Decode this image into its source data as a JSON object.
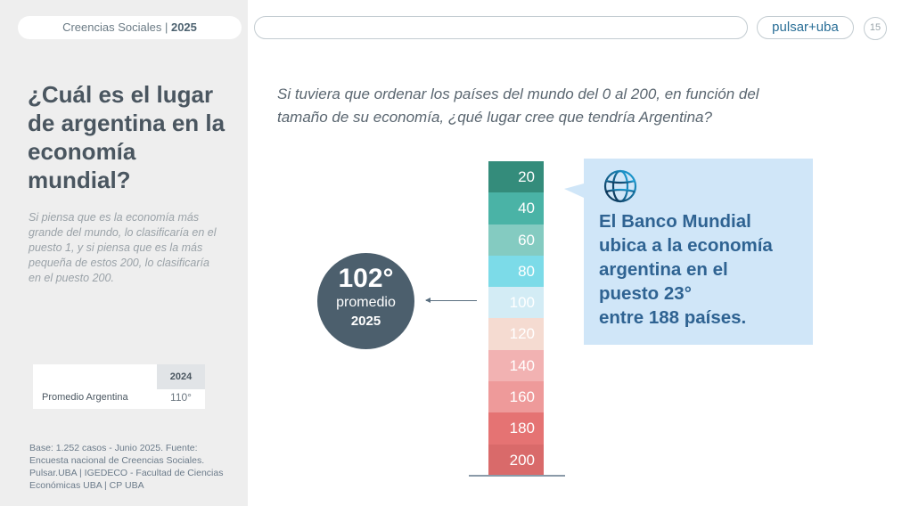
{
  "header": {
    "title": "Creencias Sociales | ",
    "year": "2025",
    "logo": "pulsar+uba",
    "page": "15"
  },
  "left": {
    "heading": "¿Cuál es el lugar de argentina en la economía mundial?",
    "description": "Si piensa que es la economía más grande del mundo, lo clasificaría en el puesto 1, y si piensa que es la más pequeña de estos 200, lo clasificaría en el puesto 200.",
    "table": {
      "year": "2024",
      "label": "Promedio Argentina",
      "value": "110°"
    },
    "source": "Base: 1.252 casos - Junio 2025. Fuente: Encuesta nacional de Creencias Sociales. Pulsar.UBA | IGEDECO - Facultad de Ciencias Económicas UBA | CP UBA"
  },
  "main": {
    "question": "Si tuviera que ordenar los países del mundo del 0 al 200, en función del tamaño de su economía, ¿qué lugar cree que tendría Argentina?",
    "average": {
      "value": "102°",
      "label": "promedio",
      "year": "2025"
    },
    "scale": [
      {
        "label": "20",
        "color": "#348c7b"
      },
      {
        "label": "40",
        "color": "#4ab3a6"
      },
      {
        "label": "60",
        "color": "#84cbc1"
      },
      {
        "label": "80",
        "color": "#7cdbe8"
      },
      {
        "label": "100",
        "color": "#d3ecf5"
      },
      {
        "label": "120",
        "color": "#f5dbd1"
      },
      {
        "label": "140",
        "color": "#f2b2b2"
      },
      {
        "label": "160",
        "color": "#ee9a9a"
      },
      {
        "label": "180",
        "color": "#e57373"
      },
      {
        "label": "200",
        "color": "#d96a6a"
      }
    ],
    "callout": {
      "line1": "El Banco Mundial",
      "line2": "ubica a la economía",
      "line3": "argentina en el",
      "line4": "puesto 23°",
      "line5": "entre 188 países."
    }
  }
}
